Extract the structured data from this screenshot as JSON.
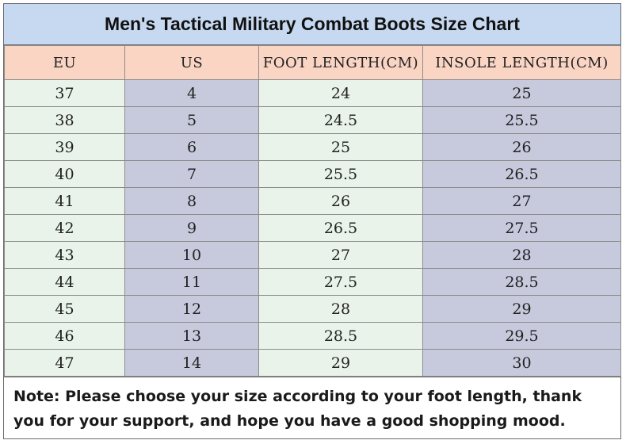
{
  "title": "Men's Tactical Military Combat Boots Size Chart",
  "headers": [
    "EU",
    "US",
    "FOOT LENGTH(CM)",
    "INSOLE LENGTH(CM)"
  ],
  "rows": [
    [
      "37",
      "4",
      "24",
      "25"
    ],
    [
      "38",
      "5",
      "24.5",
      "25.5"
    ],
    [
      "39",
      "6",
      "25",
      "26"
    ],
    [
      "40",
      "7",
      "25.5",
      "26.5"
    ],
    [
      "41",
      "8",
      "26",
      "27"
    ],
    [
      "42",
      "9",
      "26.5",
      "27.5"
    ],
    [
      "43",
      "10",
      "27",
      "28"
    ],
    [
      "44",
      "11",
      "27.5",
      "28.5"
    ],
    [
      "45",
      "12",
      "28",
      "29"
    ],
    [
      "46",
      "13",
      "28.5",
      "29.5"
    ],
    [
      "47",
      "14",
      "29",
      "30"
    ]
  ],
  "note": "Note: Please choose your size according to your foot length, thank you for your support, and hope you have a good shopping mood.",
  "colors": {
    "title_bg": "#c6d9f1",
    "header_bg": "#fbd5c4",
    "col_light": "#eaf3ea",
    "col_dark": "#c7c9dd"
  }
}
